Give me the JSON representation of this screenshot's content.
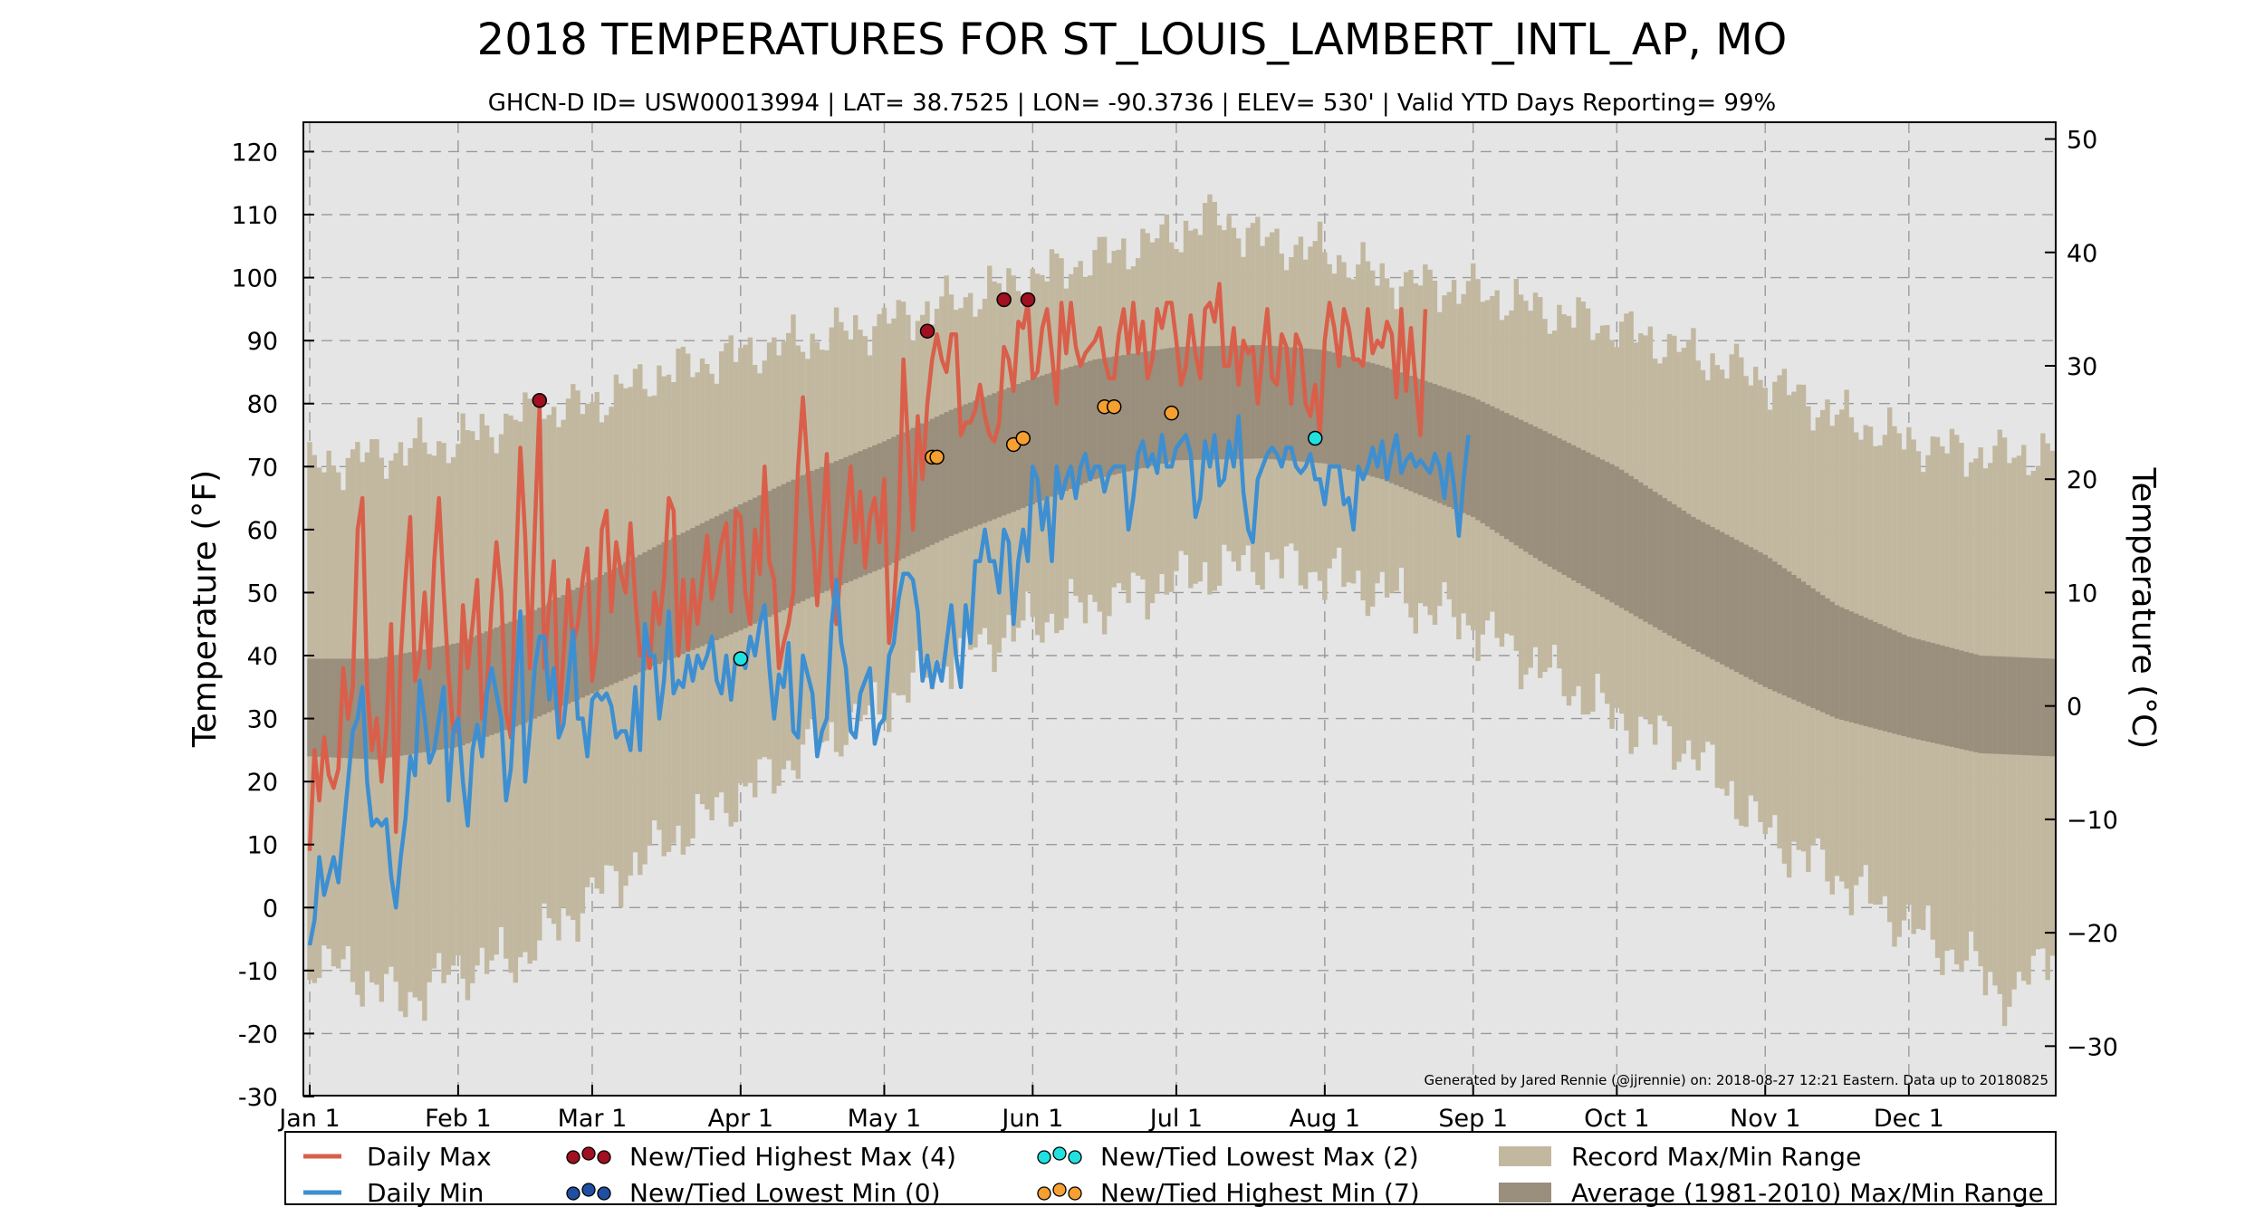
{
  "chart_data": {
    "type": "line",
    "title": "2018 TEMPERATURES FOR ST_LOUIS_LAMBERT_INTL_AP, MO",
    "subtitle": "GHCN-D ID= USW00013994 | LAT= 38.7525 | LON= -90.3736 | ELEV= 530' | Valid YTD Days Reporting= 99%",
    "ylabel_left": "Temperature (°F)",
    "ylabel_right": "Temperature (°C)",
    "ylim_f": [
      -30,
      125
    ],
    "y_ticks_f": [
      -30,
      -20,
      -10,
      0,
      10,
      20,
      30,
      40,
      50,
      60,
      70,
      80,
      90,
      100,
      110,
      120
    ],
    "y_ticks_f_labels": [
      "-30",
      "-20",
      "-10",
      "0",
      "10",
      "20",
      "30",
      "40",
      "50",
      "60",
      "70",
      "80",
      "90",
      "100",
      "110",
      "120"
    ],
    "y_ticks_c": [
      -30,
      -20,
      -10,
      0,
      10,
      20,
      30,
      40,
      50
    ],
    "y_ticks_c_labels": [
      "−30",
      "−20",
      "−10",
      "0",
      "10",
      "20",
      "30",
      "40",
      "50"
    ],
    "x_ticks_day": [
      1,
      32,
      60,
      91,
      121,
      152,
      182,
      213,
      244,
      274,
      305,
      335
    ],
    "x_tick_labels": [
      "Jan 1",
      "Feb 1",
      "Mar 1",
      "Apr 1",
      "May 1",
      "Jun 1",
      "Jul 1",
      "Aug 1",
      "Sep 1",
      "Oct 1",
      "Nov 1",
      "Dec 1"
    ],
    "record_max_keypoints": [
      [
        1,
        70
      ],
      [
        15,
        72
      ],
      [
        32,
        74
      ],
      [
        45,
        78
      ],
      [
        60,
        80
      ],
      [
        75,
        85
      ],
      [
        91,
        88
      ],
      [
        105,
        90
      ],
      [
        121,
        93
      ],
      [
        135,
        96
      ],
      [
        152,
        100
      ],
      [
        165,
        103
      ],
      [
        182,
        107
      ],
      [
        190,
        110
      ],
      [
        200,
        106
      ],
      [
        213,
        104
      ],
      [
        225,
        100
      ],
      [
        244,
        98
      ],
      [
        258,
        95
      ],
      [
        274,
        92
      ],
      [
        290,
        88
      ],
      [
        305,
        84
      ],
      [
        320,
        78
      ],
      [
        335,
        74
      ],
      [
        350,
        72
      ],
      [
        365,
        72
      ]
    ],
    "record_min_keypoints": [
      [
        1,
        -8
      ],
      [
        15,
        -12
      ],
      [
        20,
        -15
      ],
      [
        32,
        -10
      ],
      [
        45,
        -8
      ],
      [
        60,
        2
      ],
      [
        75,
        10
      ],
      [
        91,
        18
      ],
      [
        105,
        25
      ],
      [
        121,
        32
      ],
      [
        135,
        40
      ],
      [
        152,
        45
      ],
      [
        165,
        48
      ],
      [
        182,
        52
      ],
      [
        200,
        55
      ],
      [
        213,
        53
      ],
      [
        225,
        50
      ],
      [
        244,
        45
      ],
      [
        258,
        38
      ],
      [
        274,
        30
      ],
      [
        290,
        25
      ],
      [
        305,
        12
      ],
      [
        320,
        5
      ],
      [
        335,
        -3
      ],
      [
        350,
        -10
      ],
      [
        357,
        -15
      ],
      [
        365,
        -5
      ]
    ],
    "avg_max_keypoints": [
      [
        1,
        39.5
      ],
      [
        15,
        39.5
      ],
      [
        32,
        42
      ],
      [
        45,
        46
      ],
      [
        60,
        52
      ],
      [
        75,
        58
      ],
      [
        91,
        64
      ],
      [
        105,
        69
      ],
      [
        121,
        74
      ],
      [
        135,
        79
      ],
      [
        152,
        84
      ],
      [
        165,
        87
      ],
      [
        182,
        89
      ],
      [
        200,
        89.3
      ],
      [
        213,
        88.5
      ],
      [
        225,
        86
      ],
      [
        244,
        81
      ],
      [
        258,
        76
      ],
      [
        274,
        70
      ],
      [
        290,
        62
      ],
      [
        305,
        56
      ],
      [
        320,
        48
      ],
      [
        335,
        43
      ],
      [
        350,
        40
      ],
      [
        365,
        39.5
      ]
    ],
    "avg_min_keypoints": [
      [
        1,
        24
      ],
      [
        15,
        23.5
      ],
      [
        32,
        25.5
      ],
      [
        45,
        29
      ],
      [
        60,
        34
      ],
      [
        75,
        39
      ],
      [
        91,
        44
      ],
      [
        105,
        49
      ],
      [
        121,
        54
      ],
      [
        135,
        59
      ],
      [
        152,
        64
      ],
      [
        165,
        68
      ],
      [
        182,
        71
      ],
      [
        200,
        71.3
      ],
      [
        213,
        70.5
      ],
      [
        225,
        68
      ],
      [
        244,
        62
      ],
      [
        258,
        55
      ],
      [
        274,
        48
      ],
      [
        290,
        41
      ],
      [
        305,
        35
      ],
      [
        320,
        30
      ],
      [
        335,
        27
      ],
      [
        350,
        24.5
      ],
      [
        365,
        24
      ]
    ],
    "series": [
      {
        "name": "Daily Max",
        "color": "#d95f4a",
        "values": [
          9,
          25,
          17,
          27,
          21,
          19,
          22,
          38,
          30,
          35,
          60,
          65,
          35,
          25,
          30,
          20,
          28,
          45,
          12,
          40,
          52,
          62,
          36,
          40,
          50,
          38,
          55,
          65,
          50,
          37,
          28,
          28,
          48,
          38,
          45,
          52,
          30,
          35,
          48,
          58,
          50,
          31,
          27,
          52,
          73,
          59,
          38,
          60,
          80,
          38,
          48,
          55,
          28,
          40,
          52,
          42,
          45,
          52,
          57,
          36,
          42,
          60,
          63,
          47,
          58,
          53,
          50,
          61,
          49,
          40,
          42,
          38,
          50,
          45,
          52,
          65,
          63,
          40,
          52,
          41,
          52,
          45,
          52,
          59,
          49,
          53,
          58,
          61,
          47,
          63,
          62,
          50,
          45,
          60,
          53,
          70,
          55,
          52,
          38,
          42,
          45,
          50,
          70,
          81,
          70,
          60,
          48,
          59,
          72,
          52,
          45,
          55,
          62,
          70,
          58,
          66,
          54,
          62,
          65,
          58,
          68,
          42,
          48,
          60,
          87,
          73,
          60,
          78,
          68,
          80,
          87,
          91,
          87,
          85,
          91,
          91,
          75,
          77,
          77,
          79,
          83,
          78,
          75,
          74,
          77,
          89,
          87,
          82,
          93,
          92,
          96,
          84,
          85,
          92,
          95,
          88,
          80,
          96,
          88,
          96,
          89,
          86,
          88,
          89,
          90,
          92,
          87,
          84,
          84,
          91,
          95,
          88,
          96,
          88,
          93,
          84,
          87,
          95,
          92,
          96,
          96,
          90,
          83,
          86,
          94,
          88,
          84,
          95,
          96,
          93,
          99,
          86,
          86,
          92,
          83,
          90,
          88,
          89,
          80,
          88,
          95,
          84,
          83,
          91,
          89,
          80,
          91,
          89,
          80,
          78,
          83,
          75,
          90,
          96,
          92,
          86,
          95,
          92,
          87,
          87,
          86,
          95,
          88,
          90,
          89,
          93,
          91,
          81,
          95,
          82,
          92,
          83,
          75,
          95
        ]
      },
      {
        "name": "Daily Min",
        "color": "#3d8fd1",
        "values": [
          -6,
          -2,
          8,
          2,
          5,
          8,
          4,
          12,
          20,
          28,
          30,
          35,
          20,
          13,
          14,
          13,
          14,
          5,
          0,
          8,
          14,
          24,
          21,
          36,
          30,
          23,
          25,
          30,
          35,
          17,
          28,
          30,
          20,
          13,
          25,
          29,
          24,
          34,
          38,
          34,
          30,
          17,
          22,
          35,
          47,
          20,
          28,
          38,
          43,
          43,
          33,
          38,
          27,
          29,
          36,
          44,
          30,
          30,
          24,
          33,
          34,
          33,
          34,
          32,
          27,
          28,
          28,
          25,
          35,
          25,
          45,
          40,
          40,
          30,
          36,
          47,
          34,
          36,
          35,
          40,
          36,
          40,
          38,
          40,
          43,
          36,
          34,
          40,
          33,
          40,
          40,
          38,
          43,
          40,
          45,
          48,
          38,
          30,
          37,
          35,
          42,
          28,
          27,
          40,
          37,
          34,
          24,
          28,
          30,
          45,
          52,
          42,
          38,
          28,
          27,
          34,
          36,
          38,
          26,
          29,
          30,
          40,
          42,
          49,
          53,
          53,
          52,
          47,
          36,
          40,
          35,
          39,
          36,
          42,
          48,
          40,
          35,
          48,
          42,
          55,
          55,
          60,
          55,
          55,
          50,
          60,
          58,
          45,
          55,
          60,
          55,
          70,
          68,
          60,
          65,
          55,
          70,
          65,
          68,
          70,
          65,
          70,
          72,
          68,
          70,
          70,
          66,
          69,
          70,
          70,
          70,
          60,
          65,
          72,
          74,
          70,
          72,
          69,
          75,
          70,
          70,
          73,
          74,
          75,
          72,
          62,
          65,
          74,
          70,
          75,
          67,
          68,
          74,
          70,
          78,
          66,
          60,
          58,
          68,
          70,
          72,
          73,
          72,
          70,
          73,
          73,
          70,
          69,
          70,
          72,
          68,
          68,
          64,
          70,
          70,
          70,
          64,
          65,
          60,
          70,
          68,
          70,
          73,
          70,
          74,
          68,
          72,
          75,
          69,
          71,
          72,
          70,
          71,
          70,
          69,
          72,
          70,
          65,
          72,
          67,
          59,
          68,
          75
        ]
      }
    ],
    "markers": {
      "highest_max": {
        "color": "#a01020",
        "points": [
          [
            49,
            80.5
          ],
          [
            130,
            91.5
          ],
          [
            146,
            96.5
          ],
          [
            151,
            96.5
          ]
        ]
      },
      "lowest_max": {
        "color": "#20e0e0",
        "points": [
          [
            91,
            39.5
          ],
          [
            211,
            74.5
          ]
        ]
      },
      "highest_min": {
        "color": "#f5a030",
        "points": [
          [
            131,
            71.5
          ],
          [
            132,
            71.5
          ],
          [
            148,
            73.5
          ],
          [
            150,
            74.5
          ],
          [
            167,
            79.5
          ],
          [
            169,
            79.5
          ],
          [
            181,
            78.5
          ]
        ]
      }
    },
    "credit": "Generated by Jared Rennie (@jjrennie) on: 2018-08-27 12:21 Eastern. Data up to 20180825",
    "legend": [
      {
        "label": "Daily Max",
        "kind": "line",
        "color": "#d95f4a"
      },
      {
        "label": "Daily Min",
        "kind": "line",
        "color": "#3d8fd1"
      },
      {
        "label": "New/Tied Highest Max (4)",
        "kind": "dots",
        "color": "#a01020"
      },
      {
        "label": "New/Tied Lowest Min (0)",
        "kind": "dots",
        "color": "#1f4fa0"
      },
      {
        "label": "New/Tied Lowest Max (2)",
        "kind": "dots",
        "color": "#20e0e0"
      },
      {
        "label": "New/Tied Highest Min (7)",
        "kind": "dots",
        "color": "#f5a030"
      },
      {
        "label": "Record Max/Min Range",
        "kind": "patch",
        "color": "#c2b8a0"
      },
      {
        "label": "Average (1981-2010) Max/Min Range",
        "kind": "patch",
        "color": "#9a8e7c"
      }
    ],
    "colors": {
      "plot_background": "#e5e5e5",
      "record_range": "#c2b8a0",
      "average_range": "#9a8e7c",
      "grid": "#9a9a9a"
    }
  }
}
